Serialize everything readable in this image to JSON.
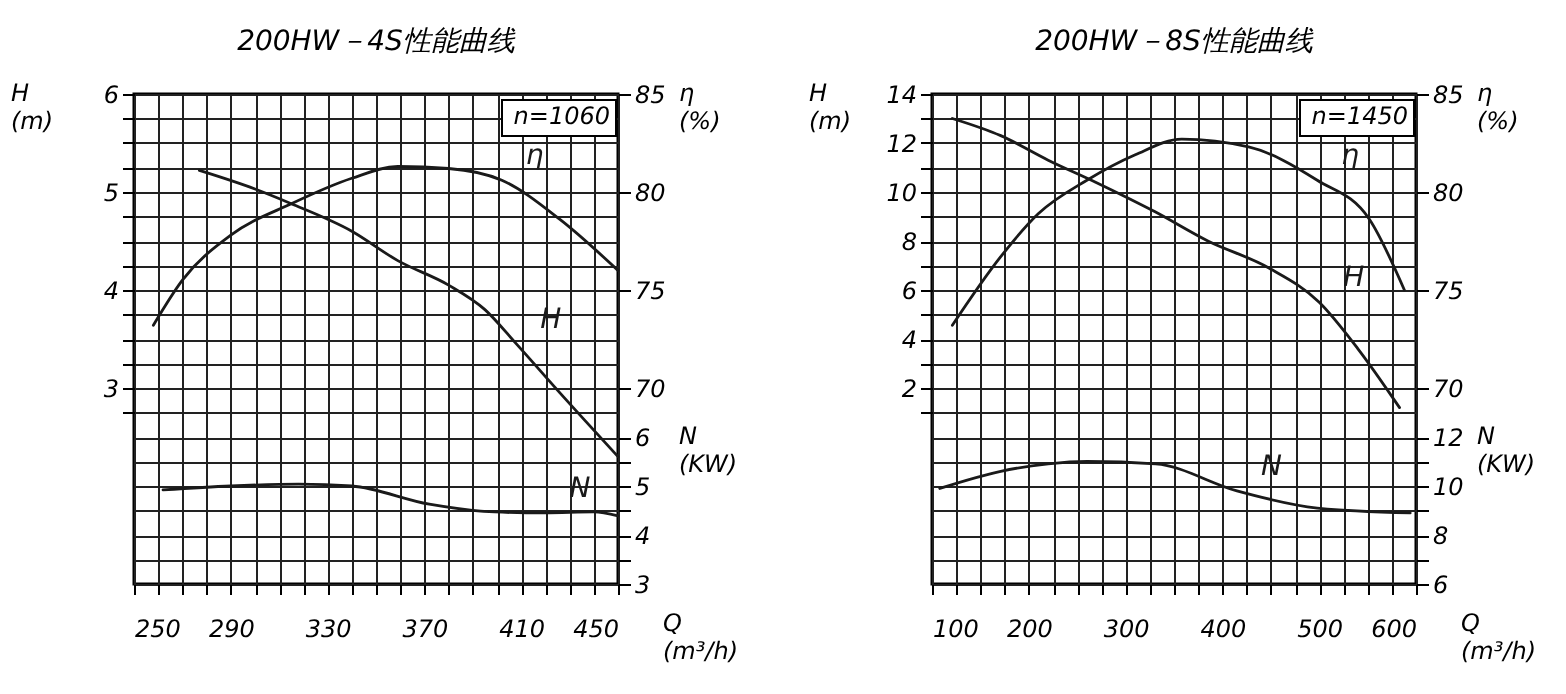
{
  "chart_data": [
    {
      "type": "line",
      "title": "200HW－4S性能曲线",
      "xlabel": "Q (m³/h)",
      "ylabel": "H (m)",
      "y2label": "η (%)",
      "y3label": "N (KW)",
      "annotations": [
        "n=1060"
      ],
      "grid": true,
      "xlim": [
        250,
        450
      ],
      "xticks": [
        250,
        {
          "value": 260,
          "label": null
        },
        {
          "value": 270,
          "label": null
        },
        {
          "value": 280,
          "label": null
        },
        290,
        {
          "value": 300,
          "label": null
        },
        {
          "value": 310,
          "label": null
        },
        {
          "value": 320,
          "label": null
        },
        330,
        {
          "value": 340,
          "label": null
        },
        {
          "value": 350,
          "label": null
        },
        {
          "value": 360,
          "label": null
        },
        370,
        {
          "value": 380,
          "label": null
        },
        {
          "value": 390,
          "label": null
        },
        {
          "value": 400,
          "label": null
        },
        410,
        {
          "value": 420,
          "label": null
        },
        {
          "value": 430,
          "label": null
        },
        {
          "value": 440,
          "label": null
        },
        450
      ],
      "ylim": [
        1,
        6
      ],
      "yticks": [
        {
          "value": 2.75,
          "label": null
        },
        3,
        {
          "value": 3.25,
          "label": null
        },
        {
          "value": 3.5,
          "label": null
        },
        {
          "value": 3.75,
          "label": null
        },
        4,
        {
          "value": 4.25,
          "label": null
        },
        {
          "value": 4.5,
          "label": null
        },
        {
          "value": 4.75,
          "label": null
        },
        5,
        {
          "value": 5.25,
          "label": null
        },
        {
          "value": 5.5,
          "label": null
        },
        {
          "value": 5.75,
          "label": null
        },
        6
      ],
      "y2lim": [
        60,
        85
      ],
      "y2ticks": [
        70,
        75,
        80,
        85
      ],
      "y3lim": [
        3,
        13
      ],
      "y3ticks": [
        3,
        {
          "value": 3.5,
          "label": null
        },
        4,
        {
          "value": 4.5,
          "label": null
        },
        5,
        {
          "value": 5.5,
          "label": null
        },
        6
      ],
      "series": [
        {
          "name": "H",
          "color": "#1a1a1a",
          "axis": "y",
          "x": [
            277,
            300,
            315,
            340,
            359,
            380,
            395,
            408,
            426,
            450
          ],
          "values": [
            5.22,
            5.03,
            4.88,
            4.6,
            4.3,
            4.05,
            3.8,
            3.45,
            2.95,
            2.3
          ]
        },
        {
          "name": "η",
          "color": "#1a1a1a",
          "axis": "y2",
          "x": [
            258,
            270,
            290,
            315,
            340,
            359,
            380,
            402,
            426,
            450
          ],
          "values": [
            73.2,
            75.5,
            77.8,
            79.4,
            80.7,
            81.3,
            81.2,
            80.6,
            78.6,
            76
          ]
        },
        {
          "name": "N",
          "color": "#1a1a1a",
          "axis": "y3",
          "x": [
            262,
            290,
            318,
            340,
            372,
            399,
            420,
            440,
            450
          ],
          "values": [
            4.92,
            5.0,
            5.04,
            5.0,
            4.63,
            4.47,
            4.45,
            4.47,
            4.39
          ]
        }
      ]
    },
    {
      "type": "line",
      "title": "200HW－8S性能曲线",
      "xlabel": "Q (m³/h)",
      "ylabel": "H (m)",
      "y2label": "η (%)",
      "y3label": "N (KW)",
      "annotations": [
        "n=1450"
      ],
      "grid": true,
      "xlim": [
        100,
        600
      ],
      "xticks": [
        100,
        {
          "value": 125,
          "label": null
        },
        {
          "value": 150,
          "label": null
        },
        {
          "value": 175,
          "label": null
        },
        200,
        {
          "value": 225,
          "label": null
        },
        {
          "value": 250,
          "label": null
        },
        {
          "value": 275,
          "label": null
        },
        300,
        {
          "value": 325,
          "label": null
        },
        {
          "value": 350,
          "label": null
        },
        {
          "value": 375,
          "label": null
        },
        400,
        {
          "value": 425,
          "label": null
        },
        {
          "value": 450,
          "label": null
        },
        {
          "value": 475,
          "label": null
        },
        500,
        {
          "value": 525,
          "label": null
        },
        {
          "value": 550,
          "label": null
        },
        {
          "value": 575,
          "label": null
        },
        600
      ],
      "ylim": [
        -6,
        14
      ],
      "yticks": [
        {
          "value": 1,
          "label": null
        },
        2,
        {
          "value": 3,
          "label": null
        },
        4,
        {
          "value": 5,
          "label": null
        },
        6,
        {
          "value": 7,
          "label": null
        },
        8,
        {
          "value": 9,
          "label": null
        },
        10,
        {
          "value": 11,
          "label": null
        },
        12,
        {
          "value": 13,
          "label": null
        },
        14
      ],
      "y2lim": [
        60,
        85
      ],
      "y2ticks": [
        70,
        75,
        80,
        85
      ],
      "y3lim": [
        6,
        26
      ],
      "y3ticks": [
        6,
        {
          "value": 7,
          "label": null
        },
        8,
        {
          "value": 9,
          "label": null
        },
        10,
        {
          "value": 11,
          "label": null
        },
        12
      ],
      "series": [
        {
          "name": "H",
          "color": "#1a1a1a",
          "axis": "y",
          "x": [
            121,
            171,
            220,
            269,
            330,
            385,
            448,
            500,
            540,
            583
          ],
          "values": [
            13.0,
            12.3,
            11.3,
            10.4,
            9.2,
            8.0,
            6.9,
            5.5,
            3.6,
            1.2
          ]
        },
        {
          "name": "η",
          "color": "#1a1a1a",
          "axis": "y2",
          "x": [
            121,
            171,
            210,
            260,
            310,
            358,
            427,
            498,
            552,
            588
          ],
          "values": [
            73.2,
            76.7,
            78.9,
            80.6,
            81.9,
            82.7,
            82.3,
            80.6,
            78.6,
            75
          ]
        },
        {
          "name": "N",
          "color": "#1a1a1a",
          "axis": "y3",
          "x": [
            108,
            171,
            220,
            260,
            331,
            415,
            498,
            594
          ],
          "values": [
            9.9,
            10.6,
            10.9,
            11.0,
            10.9,
            9.8,
            9.1,
            8.9
          ]
        }
      ]
    }
  ]
}
